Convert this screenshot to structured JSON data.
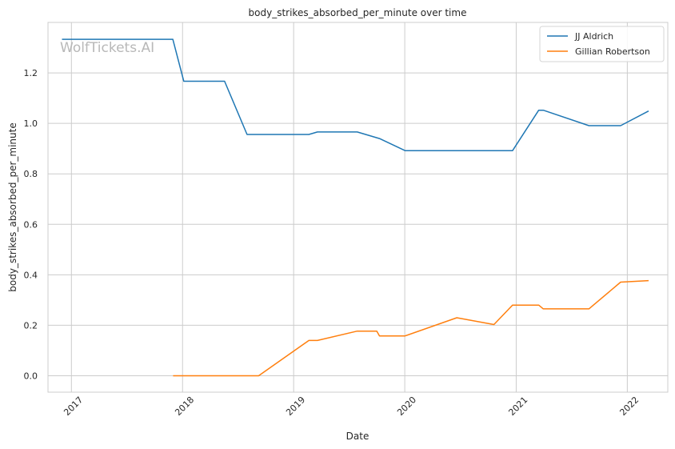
{
  "chart_data": {
    "type": "line",
    "title": "body_strikes_absorbed_per_minute over time",
    "xlabel": "Date",
    "ylabel": "body_strikes_absorbed_per_minute",
    "watermark": "WolfTickets.AI",
    "xlim": [
      "2016-10-16",
      "2022-05-14"
    ],
    "ylim": [
      -0.065,
      1.4
    ],
    "x_ticks": [
      "2017-01-01",
      "2018-01-01",
      "2019-01-01",
      "2020-01-01",
      "2021-01-01",
      "2022-01-01"
    ],
    "x_tick_labels": [
      "2017",
      "2018",
      "2019",
      "2020",
      "2021",
      "2022"
    ],
    "y_ticks": [
      0.0,
      0.2,
      0.4,
      0.6,
      0.8,
      1.0,
      1.2
    ],
    "y_tick_labels": [
      "0.0",
      "0.2",
      "0.4",
      "0.6",
      "0.8",
      "1.0",
      "1.2"
    ],
    "grid": true,
    "legend_position": "top-right",
    "series": [
      {
        "name": "JJ Aldrich",
        "color": "#1f77b4",
        "points": [
          [
            "2016-12-01",
            1.333
          ],
          [
            "2017-11-30",
            1.333
          ],
          [
            "2018-01-05",
            1.167
          ],
          [
            "2018-05-19",
            1.167
          ],
          [
            "2018-08-01",
            0.956
          ],
          [
            "2019-02-20",
            0.956
          ],
          [
            "2019-03-20",
            0.966
          ],
          [
            "2019-07-29",
            0.966
          ],
          [
            "2019-10-10",
            0.94
          ],
          [
            "2020-01-02",
            0.892
          ],
          [
            "2020-12-20",
            0.892
          ],
          [
            "2021-03-16",
            1.052
          ],
          [
            "2021-03-31",
            1.052
          ],
          [
            "2021-08-28",
            0.991
          ],
          [
            "2021-12-10",
            0.991
          ],
          [
            "2022-03-12",
            1.049
          ]
        ]
      },
      {
        "name": "Gillian Robertson",
        "color": "#ff7f0e",
        "points": [
          [
            "2017-12-01",
            0.0
          ],
          [
            "2018-09-08",
            0.0
          ],
          [
            "2019-02-20",
            0.14
          ],
          [
            "2019-03-20",
            0.14
          ],
          [
            "2019-07-29",
            0.177
          ],
          [
            "2019-10-01",
            0.177
          ],
          [
            "2019-10-10",
            0.158
          ],
          [
            "2020-01-02",
            0.158
          ],
          [
            "2020-06-20",
            0.23
          ],
          [
            "2020-10-20",
            0.203
          ],
          [
            "2020-12-20",
            0.28
          ],
          [
            "2021-03-16",
            0.28
          ],
          [
            "2021-03-31",
            0.265
          ],
          [
            "2021-08-28",
            0.265
          ],
          [
            "2021-12-10",
            0.371
          ],
          [
            "2022-03-12",
            0.377
          ]
        ]
      }
    ]
  }
}
